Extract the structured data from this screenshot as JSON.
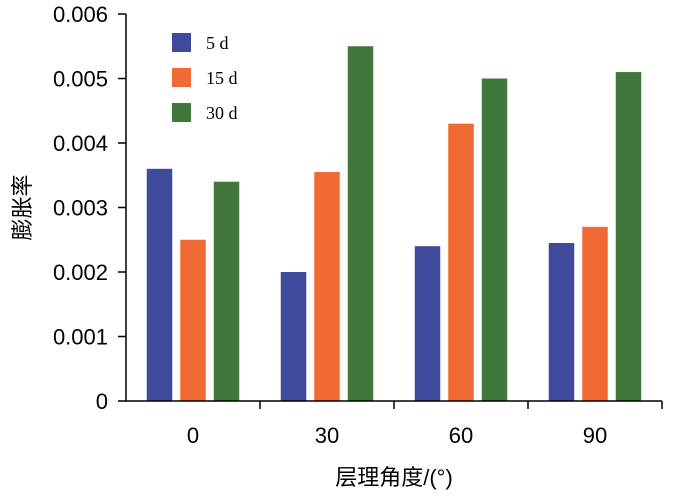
{
  "chart_data": {
    "type": "bar",
    "xlabel": "层理角度/(°)",
    "ylabel": "膨胀率",
    "categories": [
      "0",
      "30",
      "60",
      "90"
    ],
    "ylim": [
      0,
      0.006
    ],
    "yticks": [
      "0",
      "0.001",
      "0.002",
      "0.003",
      "0.004",
      "0.005",
      "0.006"
    ],
    "legend_position": "top-left",
    "grid": false,
    "series": [
      {
        "name": "5 d",
        "color": "#3f4a9a",
        "values": [
          0.0036,
          0.002,
          0.0024,
          0.00245
        ]
      },
      {
        "name": "15 d",
        "color": "#ef6a35",
        "values": [
          0.0025,
          0.00355,
          0.0043,
          0.0027
        ]
      },
      {
        "name": "30 d",
        "color": "#40773a",
        "values": [
          0.0034,
          0.0055,
          0.005,
          0.0051
        ]
      }
    ]
  }
}
